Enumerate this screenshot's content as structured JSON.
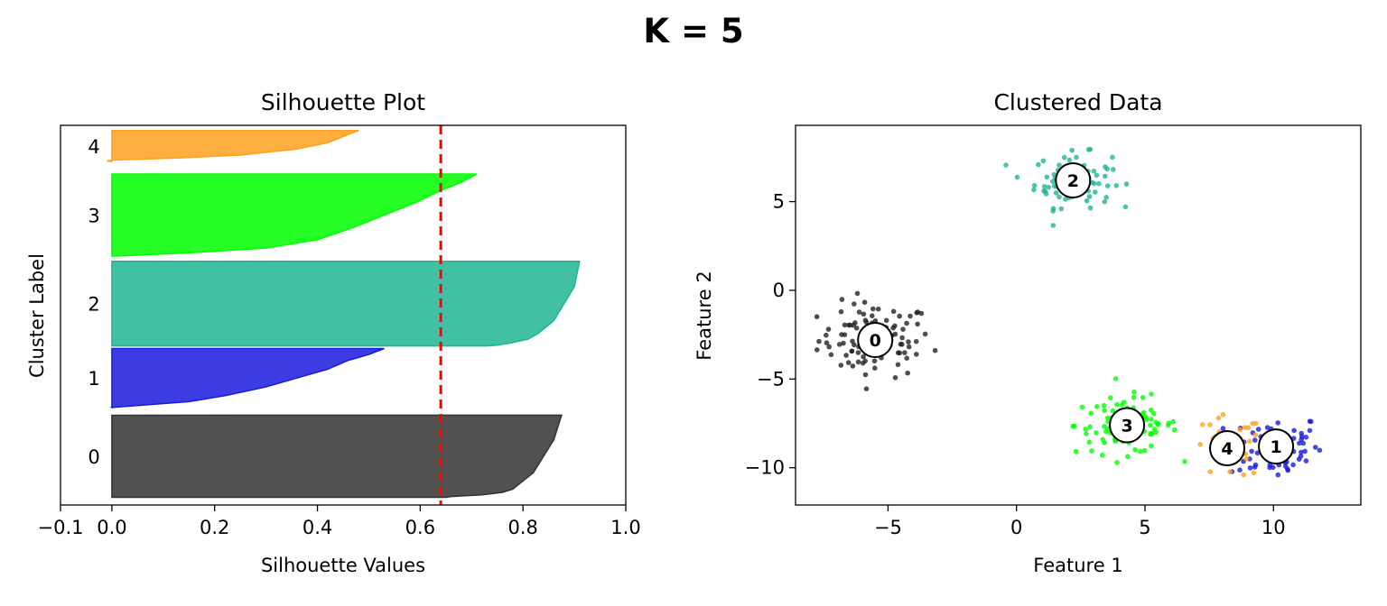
{
  "figure_title": "K = 5",
  "chart_data": [
    {
      "type": "area",
      "title": "Silhouette Plot",
      "xlabel": "Silhouette Values",
      "ylabel": "Cluster Label",
      "xlim": [
        -0.1,
        1.0
      ],
      "ylim": [
        0,
        74
      ],
      "xticks": [
        -0.1,
        0.0,
        0.2,
        0.4,
        0.6,
        0.8,
        1.0
      ],
      "xtick_labels": [
        "−0.1",
        "0.0",
        "0.2",
        "0.4",
        "0.6",
        "0.8",
        "1.0"
      ],
      "average_silhouette": 0.64,
      "average_line_color": "#ff0000",
      "grid": false,
      "clusters": [
        {
          "label": "0",
          "color": "#333333",
          "y_range": [
            1.5,
            17.5
          ],
          "profile": [
            [
              0,
              0.875
            ],
            [
              0.3,
              0.86
            ],
            [
              0.5,
              0.84
            ],
            [
              0.7,
              0.82
            ],
            [
              0.8,
              0.8
            ],
            [
              0.9,
              0.78
            ],
            [
              0.94,
              0.76
            ],
            [
              0.97,
              0.72
            ],
            [
              0.99,
              0.66
            ],
            [
              1.0,
              0.65
            ]
          ]
        },
        {
          "label": "1",
          "color": "#1a1add",
          "y_range": [
            19.0,
            30.5
          ],
          "profile": [
            [
              0,
              0.53
            ],
            [
              0.1,
              0.5
            ],
            [
              0.2,
              0.46
            ],
            [
              0.35,
              0.42
            ],
            [
              0.5,
              0.36
            ],
            [
              0.65,
              0.3
            ],
            [
              0.8,
              0.22
            ],
            [
              0.9,
              0.15
            ],
            [
              0.96,
              0.06
            ],
            [
              1.0,
              0.0
            ]
          ]
        },
        {
          "label": "2",
          "color": "#20b593",
          "y_range": [
            31.0,
            47.5
          ],
          "profile": [
            [
              0,
              0.91
            ],
            [
              0.3,
              0.9
            ],
            [
              0.5,
              0.88
            ],
            [
              0.7,
              0.86
            ],
            [
              0.85,
              0.83
            ],
            [
              0.92,
              0.81
            ],
            [
              0.96,
              0.78
            ],
            [
              0.99,
              0.75
            ],
            [
              1.0,
              0.73
            ]
          ]
        },
        {
          "label": "3",
          "color": "#00ff00",
          "y_range": [
            48.5,
            64.5
          ],
          "profile": [
            [
              0,
              0.71
            ],
            [
              0.1,
              0.68
            ],
            [
              0.2,
              0.64
            ],
            [
              0.35,
              0.59
            ],
            [
              0.5,
              0.53
            ],
            [
              0.65,
              0.47
            ],
            [
              0.8,
              0.4
            ],
            [
              0.9,
              0.3
            ],
            [
              0.96,
              0.15
            ],
            [
              1.0,
              0.0
            ]
          ]
        },
        {
          "label": "4",
          "color": "#ffa01e",
          "y_range": [
            67.0,
            73.0
          ],
          "profile": [
            [
              0,
              0.48
            ],
            [
              0.2,
              0.45
            ],
            [
              0.4,
              0.42
            ],
            [
              0.6,
              0.36
            ],
            [
              0.8,
              0.25
            ],
            [
              0.9,
              0.12
            ],
            [
              0.96,
              0.0
            ],
            [
              1.0,
              -0.01
            ]
          ]
        }
      ]
    },
    {
      "type": "scatter",
      "title": "Clustered Data",
      "xlabel": "Feature 1",
      "ylabel": "Feature 2",
      "xlim": [
        -8.6,
        13.4
      ],
      "ylim": [
        -12.1,
        9.3
      ],
      "xticks": [
        -5,
        0,
        5,
        10
      ],
      "xtick_labels": [
        "−5",
        "0",
        "5",
        "10"
      ],
      "yticks": [
        -10,
        -5,
        0,
        5
      ],
      "ytick_labels": [
        "−10",
        "−5",
        "0",
        "5"
      ],
      "grid": false,
      "clusters": [
        {
          "label": "0",
          "color": "#222222",
          "center": [
            -5.5,
            -2.8
          ],
          "spread": [
            1.1,
            1.05
          ],
          "count": 100
        },
        {
          "label": "1",
          "color": "#1a1add",
          "center": [
            10.1,
            -8.8
          ],
          "spread": [
            0.9,
            0.95
          ],
          "count": 75
        },
        {
          "label": "2",
          "color": "#20b593",
          "center": [
            2.2,
            6.2
          ],
          "spread": [
            0.75,
            0.75
          ],
          "count": 100
        },
        {
          "label": "3",
          "color": "#00ff00",
          "center": [
            4.3,
            -7.6
          ],
          "spread": [
            1.0,
            0.8
          ],
          "count": 100
        },
        {
          "label": "4",
          "color": "#ffa01e",
          "center": [
            8.2,
            -8.9
          ],
          "spread": [
            0.7,
            0.9
          ],
          "count": 40
        }
      ]
    }
  ]
}
